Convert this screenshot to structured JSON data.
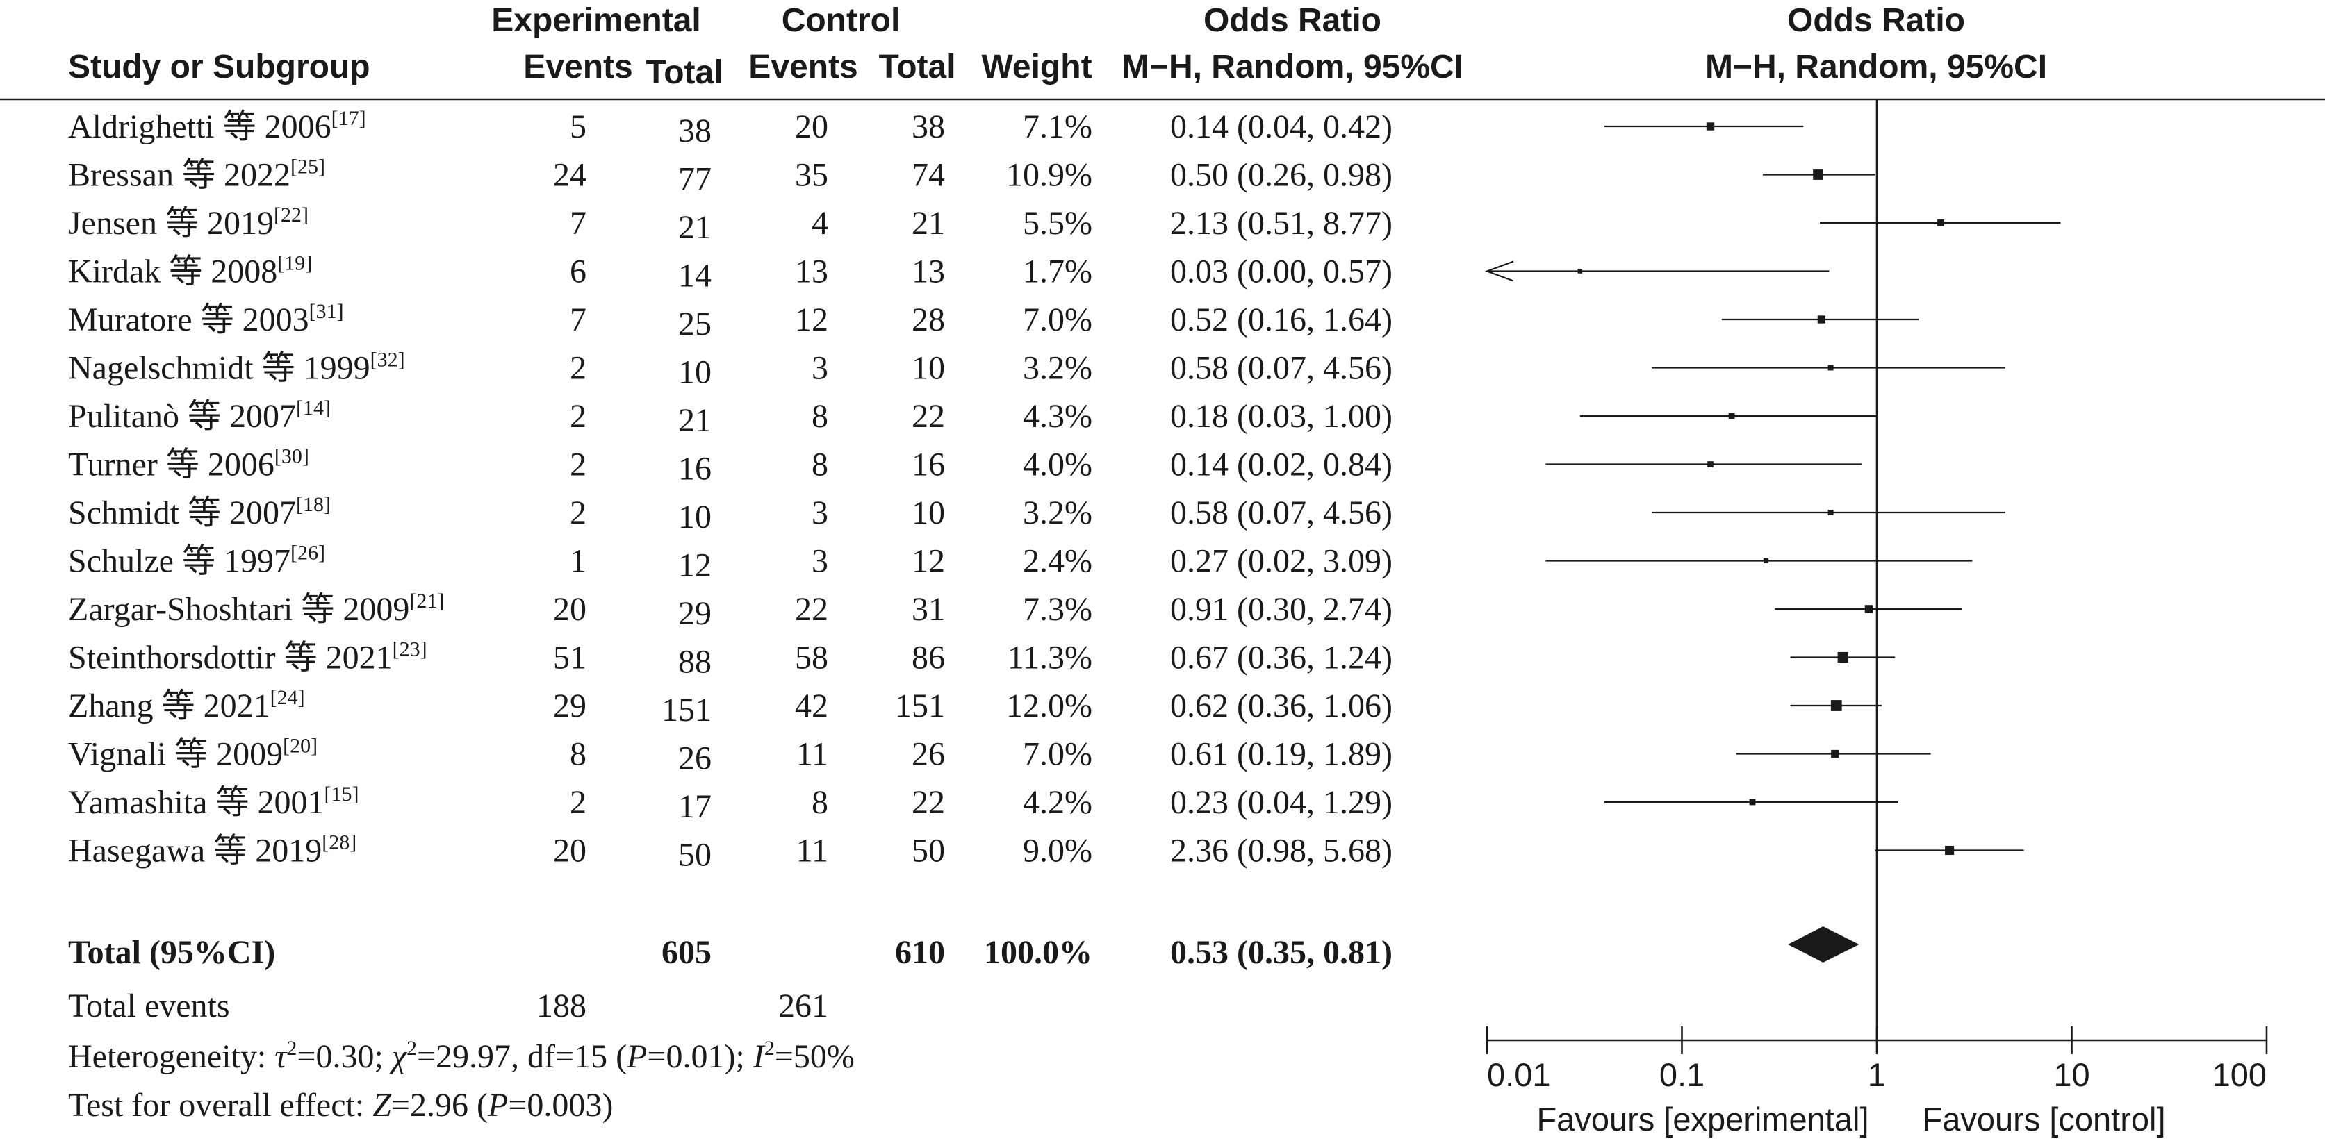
{
  "headers": {
    "study": "Study or Subgroup",
    "experimental": "Experimental",
    "control": "Control",
    "events": "Events",
    "total": "Total",
    "weight": "Weight",
    "or_title": "Odds Ratio",
    "or_method": "M−H, Random, 95%CI"
  },
  "total_row": {
    "label": "Total (95%CI)",
    "exp_total": "605",
    "ctrl_total": "610",
    "weight": "100.0%",
    "ci_text": "0.53 (0.35, 0.81)"
  },
  "total_events": {
    "label": "Total events",
    "exp": "188",
    "ctrl": "261"
  },
  "heterogeneity": {
    "label": "Heterogeneity: ",
    "tau_sym": "τ",
    "tau_val": "=0.30; ",
    "chi_sym": "χ",
    "chi_val": "=29.97, df=15 (",
    "p_sym": "P",
    "p_val": "=0.01); ",
    "i_sym": "I",
    "i_val": "=50%",
    "sup2": "2"
  },
  "overall_effect": {
    "label": "Test for overall effect: ",
    "z_sym": "Z",
    "z_val": "=2.96 (",
    "p_sym": "P",
    "p_val": "=0.003)"
  },
  "chart_data": {
    "type": "forest",
    "scale": "log",
    "xlim": [
      0.01,
      100
    ],
    "null_value": 1,
    "ticks": [
      0.01,
      0.1,
      1,
      10,
      100
    ],
    "tick_labels": [
      "0.01",
      "0.1",
      "1",
      "10",
      "100"
    ],
    "favours_left": "Favours [experimental]",
    "favours_right": "Favours [control]",
    "studies": [
      {
        "name": "Aldrighetti 等 2006",
        "ref": "[17]",
        "exp_events": "5",
        "exp_total": "38",
        "ctrl_events": "20",
        "ctrl_total": "38",
        "weight": "7.1%",
        "ci_text": "0.14 (0.04, 0.42)",
        "or": 0.14,
        "lo": 0.04,
        "hi": 0.42,
        "w": 7.1
      },
      {
        "name": "Bressan 等 2022",
        "ref": "[25]",
        "exp_events": "24",
        "exp_total": "77",
        "ctrl_events": "35",
        "ctrl_total": "74",
        "weight": "10.9%",
        "ci_text": "0.50 (0.26, 0.98)",
        "or": 0.5,
        "lo": 0.26,
        "hi": 0.98,
        "w": 10.9
      },
      {
        "name": "Jensen 等 2019",
        "ref": "[22]",
        "exp_events": "7",
        "exp_total": "21",
        "ctrl_events": "4",
        "ctrl_total": "21",
        "weight": "5.5%",
        "ci_text": "2.13 (0.51, 8.77)",
        "or": 2.13,
        "lo": 0.51,
        "hi": 8.77,
        "w": 5.5
      },
      {
        "name": "Kirdak 等 2008",
        "ref": "[19]",
        "exp_events": "6",
        "exp_total": "14",
        "ctrl_events": "13",
        "ctrl_total": "13",
        "weight": "1.7%",
        "ci_text": "0.03 (0.00, 0.57)",
        "or": 0.03,
        "lo": 0.0,
        "hi": 0.57,
        "w": 1.7
      },
      {
        "name": "Muratore 等 2003",
        "ref": "[31]",
        "exp_events": "7",
        "exp_total": "25",
        "ctrl_events": "12",
        "ctrl_total": "28",
        "weight": "7.0%",
        "ci_text": "0.52 (0.16, 1.64)",
        "or": 0.52,
        "lo": 0.16,
        "hi": 1.64,
        "w": 7.0
      },
      {
        "name": "Nagelschmidt 等 1999",
        "ref": "[32]",
        "exp_events": "2",
        "exp_total": "10",
        "ctrl_events": "3",
        "ctrl_total": "10",
        "weight": "3.2%",
        "ci_text": "0.58 (0.07, 4.56)",
        "or": 0.58,
        "lo": 0.07,
        "hi": 4.56,
        "w": 3.2
      },
      {
        "name": "Pulitanò 等 2007",
        "ref": "[14]",
        "exp_events": "2",
        "exp_total": "21",
        "ctrl_events": "8",
        "ctrl_total": "22",
        "weight": "4.3%",
        "ci_text": "0.18 (0.03, 1.00)",
        "or": 0.18,
        "lo": 0.03,
        "hi": 1.0,
        "w": 4.3
      },
      {
        "name": "Turner 等 2006",
        "ref": "[30]",
        "exp_events": "2",
        "exp_total": "16",
        "ctrl_events": "8",
        "ctrl_total": "16",
        "weight": "4.0%",
        "ci_text": "0.14 (0.02, 0.84)",
        "or": 0.14,
        "lo": 0.02,
        "hi": 0.84,
        "w": 4.0
      },
      {
        "name": "Schmidt 等 2007",
        "ref": "[18]",
        "exp_events": "2",
        "exp_total": "10",
        "ctrl_events": "3",
        "ctrl_total": "10",
        "weight": "3.2%",
        "ci_text": "0.58 (0.07, 4.56)",
        "or": 0.58,
        "lo": 0.07,
        "hi": 4.56,
        "w": 3.2
      },
      {
        "name": "Schulze 等 1997",
        "ref": "[26]",
        "exp_events": "1",
        "exp_total": "12",
        "ctrl_events": "3",
        "ctrl_total": "12",
        "weight": "2.4%",
        "ci_text": "0.27 (0.02, 3.09)",
        "or": 0.27,
        "lo": 0.02,
        "hi": 3.09,
        "w": 2.4
      },
      {
        "name": "Zargar-Shoshtari 等 2009",
        "ref": "[21]",
        "exp_events": "20",
        "exp_total": "29",
        "ctrl_events": "22",
        "ctrl_total": "31",
        "weight": "7.3%",
        "ci_text": "0.91 (0.30, 2.74)",
        "or": 0.91,
        "lo": 0.3,
        "hi": 2.74,
        "w": 7.3
      },
      {
        "name": "Steinthorsdottir 等 2021",
        "ref": "[23]",
        "exp_events": "51",
        "exp_total": "88",
        "ctrl_events": "58",
        "ctrl_total": "86",
        "weight": "11.3%",
        "ci_text": "0.67 (0.36, 1.24)",
        "or": 0.67,
        "lo": 0.36,
        "hi": 1.24,
        "w": 11.3
      },
      {
        "name": "Zhang 等 2021",
        "ref": "[24]",
        "exp_events": "29",
        "exp_total": "151",
        "ctrl_events": "42",
        "ctrl_total": "151",
        "weight": "12.0%",
        "ci_text": "0.62 (0.36, 1.06)",
        "or": 0.62,
        "lo": 0.36,
        "hi": 1.06,
        "w": 12.0
      },
      {
        "name": "Vignali 等 2009",
        "ref": "[20]",
        "exp_events": "8",
        "exp_total": "26",
        "ctrl_events": "11",
        "ctrl_total": "26",
        "weight": "7.0%",
        "ci_text": "0.61 (0.19, 1.89)",
        "or": 0.61,
        "lo": 0.19,
        "hi": 1.89,
        "w": 7.0
      },
      {
        "name": "Yamashita 等 2001",
        "ref": "[15]",
        "exp_events": "2",
        "exp_total": "17",
        "ctrl_events": "8",
        "ctrl_total": "22",
        "weight": "4.2%",
        "ci_text": "0.23 (0.04, 1.29)",
        "or": 0.23,
        "lo": 0.04,
        "hi": 1.29,
        "w": 4.2
      },
      {
        "name": "Hasegawa 等 2019",
        "ref": "[28]",
        "exp_events": "20",
        "exp_total": "50",
        "ctrl_events": "11",
        "ctrl_total": "50",
        "weight": "9.0%",
        "ci_text": "2.36 (0.98, 5.68)",
        "or": 2.36,
        "lo": 0.98,
        "hi": 5.68,
        "w": 9.0
      }
    ],
    "pooled": {
      "or": 0.53,
      "lo": 0.35,
      "hi": 0.81
    }
  }
}
